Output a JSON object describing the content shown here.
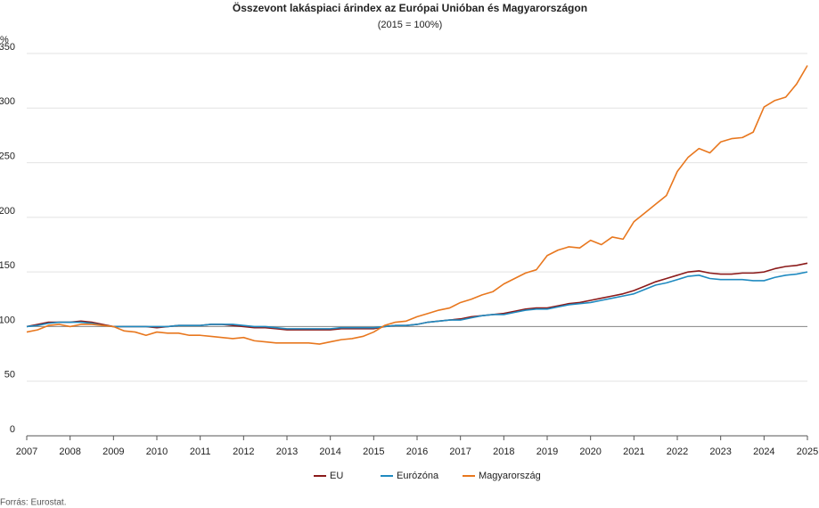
{
  "chart_data": {
    "type": "line",
    "title": "Összevont lakáspiaci árindex az Európai Unióban és Magyarországon",
    "subtitle": "(2015 = 100%)",
    "y_label": "%",
    "source": "Forrás: Eurostat.",
    "x": [
      2007,
      2007.25,
      2007.5,
      2007.75,
      2008,
      2008.25,
      2008.5,
      2008.75,
      2009,
      2009.25,
      2009.5,
      2009.75,
      2010,
      2010.25,
      2010.5,
      2010.75,
      2011,
      2011.25,
      2011.5,
      2011.75,
      2012,
      2012.25,
      2012.5,
      2012.75,
      2013,
      2013.25,
      2013.5,
      2013.75,
      2014,
      2014.25,
      2014.5,
      2014.75,
      2015,
      2015.25,
      2015.5,
      2015.75,
      2016,
      2016.25,
      2016.5,
      2016.75,
      2017,
      2017.25,
      2017.5,
      2017.75,
      2018,
      2018.25,
      2018.5,
      2018.75,
      2019,
      2019.25,
      2019.5,
      2019.75,
      2020,
      2020.25,
      2020.5,
      2020.75,
      2021,
      2021.25,
      2021.5,
      2021.75,
      2022,
      2022.25,
      2022.5,
      2022.75,
      2023,
      2023.25,
      2023.5,
      2023.75,
      2024,
      2024.25,
      2024.5,
      2024.75,
      2025
    ],
    "series": [
      {
        "name": "EU",
        "color": "#8b1a1a",
        "values": [
          100,
          102,
          104,
          104,
          104,
          105,
          104,
          102,
          100,
          100,
          100,
          100,
          99,
          100,
          101,
          101,
          101,
          102,
          102,
          101,
          100,
          99,
          99,
          98,
          97,
          97,
          97,
          97,
          97,
          98,
          98,
          98,
          98,
          100,
          101,
          101,
          102,
          104,
          105,
          106,
          107,
          109,
          110,
          111,
          112,
          114,
          116,
          117,
          117,
          119,
          121,
          122,
          124,
          126,
          128,
          130,
          133,
          137,
          141,
          144,
          147,
          150,
          151,
          149,
          148,
          148,
          149,
          149,
          150,
          153,
          155,
          156,
          158
        ]
      },
      {
        "name": "Eurózóna",
        "color": "#1f8ac0",
        "values": [
          100,
          101,
          103,
          104,
          104,
          104,
          103,
          101,
          100,
          100,
          100,
          100,
          100,
          100,
          101,
          101,
          101,
          102,
          102,
          102,
          101,
          100,
          100,
          99,
          98,
          98,
          98,
          98,
          98,
          99,
          99,
          99,
          99,
          100,
          101,
          101,
          102,
          104,
          105,
          106,
          106,
          108,
          110,
          111,
          111,
          113,
          115,
          116,
          116,
          118,
          120,
          121,
          122,
          124,
          126,
          128,
          130,
          134,
          138,
          140,
          143,
          146,
          147,
          144,
          143,
          143,
          143,
          142,
          142,
          145,
          147,
          148,
          150
        ]
      },
      {
        "name": "Magyarország",
        "color": "#e8771e",
        "values": [
          95,
          97,
          101,
          102,
          100,
          102,
          102,
          101,
          100,
          96,
          95,
          92,
          95,
          94,
          94,
          92,
          92,
          91,
          90,
          89,
          90,
          87,
          86,
          85,
          85,
          85,
          85,
          84,
          86,
          88,
          89,
          91,
          95,
          101,
          104,
          105,
          109,
          112,
          115,
          117,
          122,
          125,
          129,
          132,
          139,
          144,
          149,
          152,
          165,
          170,
          173,
          172,
          179,
          175,
          182,
          180,
          196,
          204,
          212,
          220,
          242,
          255,
          263,
          259,
          269,
          272,
          273,
          278,
          301,
          307,
          310,
          322,
          339
        ]
      }
    ],
    "reference_line": 100,
    "xlim": [
      2007,
      2025
    ],
    "xticks": [
      2007,
      2008,
      2009,
      2010,
      2011,
      2012,
      2013,
      2014,
      2015,
      2016,
      2017,
      2018,
      2019,
      2020,
      2021,
      2022,
      2023,
      2024,
      2025
    ],
    "ylim": [
      0,
      350
    ],
    "yticks": [
      0,
      50,
      100,
      150,
      200,
      250,
      300,
      350
    ],
    "grid": true,
    "legend": "bottom"
  }
}
